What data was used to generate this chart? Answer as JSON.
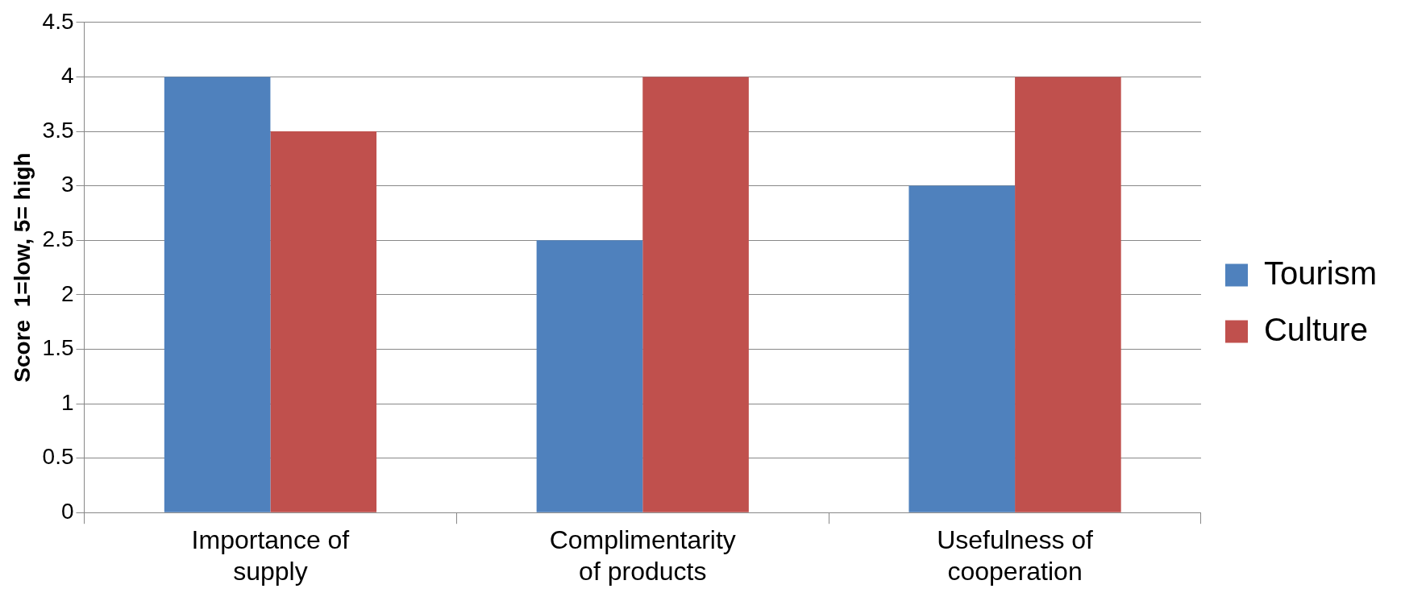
{
  "chart_data": {
    "type": "bar",
    "ylabel": "Score  1=low, 5= high",
    "categories": [
      "Importance of supply",
      "Complimentarity of products",
      "Usefulness of cooperation"
    ],
    "series": [
      {
        "name": "Tourism",
        "color": "#4f81bd",
        "values": [
          4,
          2.5,
          3
        ]
      },
      {
        "name": "Culture",
        "color": "#c0504d",
        "values": [
          3.5,
          4,
          4
        ]
      }
    ],
    "ylim": [
      0,
      4.5
    ],
    "yticks": [
      0,
      0.5,
      1,
      1.5,
      2,
      2.5,
      3,
      3.5,
      4,
      4.5
    ],
    "grid": "y",
    "legend": "right"
  }
}
